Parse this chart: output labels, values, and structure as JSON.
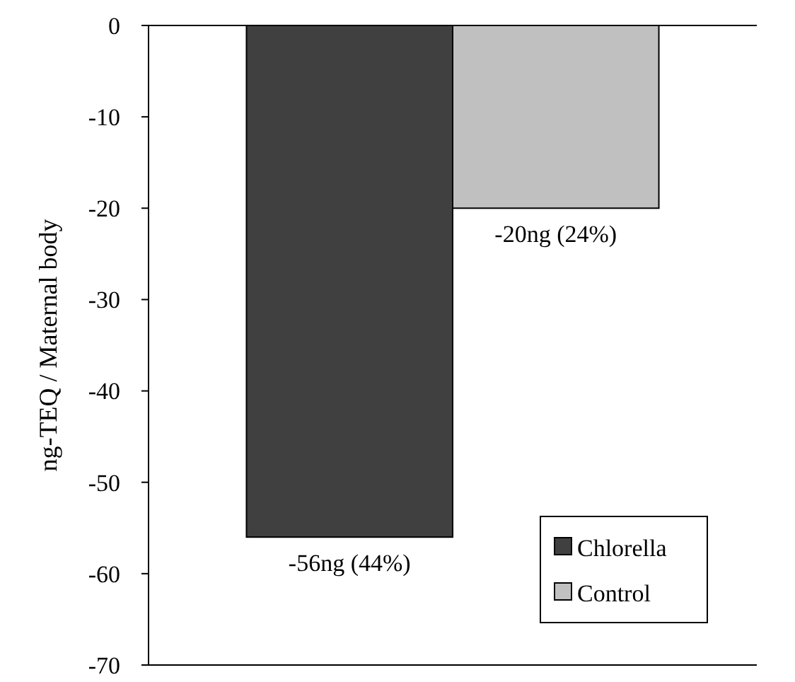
{
  "chart_data": {
    "type": "bar",
    "ylabel": "ng-TEQ / Maternal body",
    "categories": [
      null
    ],
    "series": [
      {
        "name": "Chlorella",
        "color": "#404040",
        "values": [
          -56
        ],
        "value_labels": [
          "-56ng (44%)"
        ]
      },
      {
        "name": "Control",
        "color": "#c0c0c0",
        "values": [
          -20
        ],
        "value_labels": [
          "-20ng (24%)"
        ]
      }
    ],
    "ylim": [
      -70,
      0
    ],
    "yticks": [
      0,
      -10,
      -20,
      -30,
      -40,
      -50,
      -60,
      -70
    ],
    "grid": false,
    "legend": "bottom right"
  }
}
